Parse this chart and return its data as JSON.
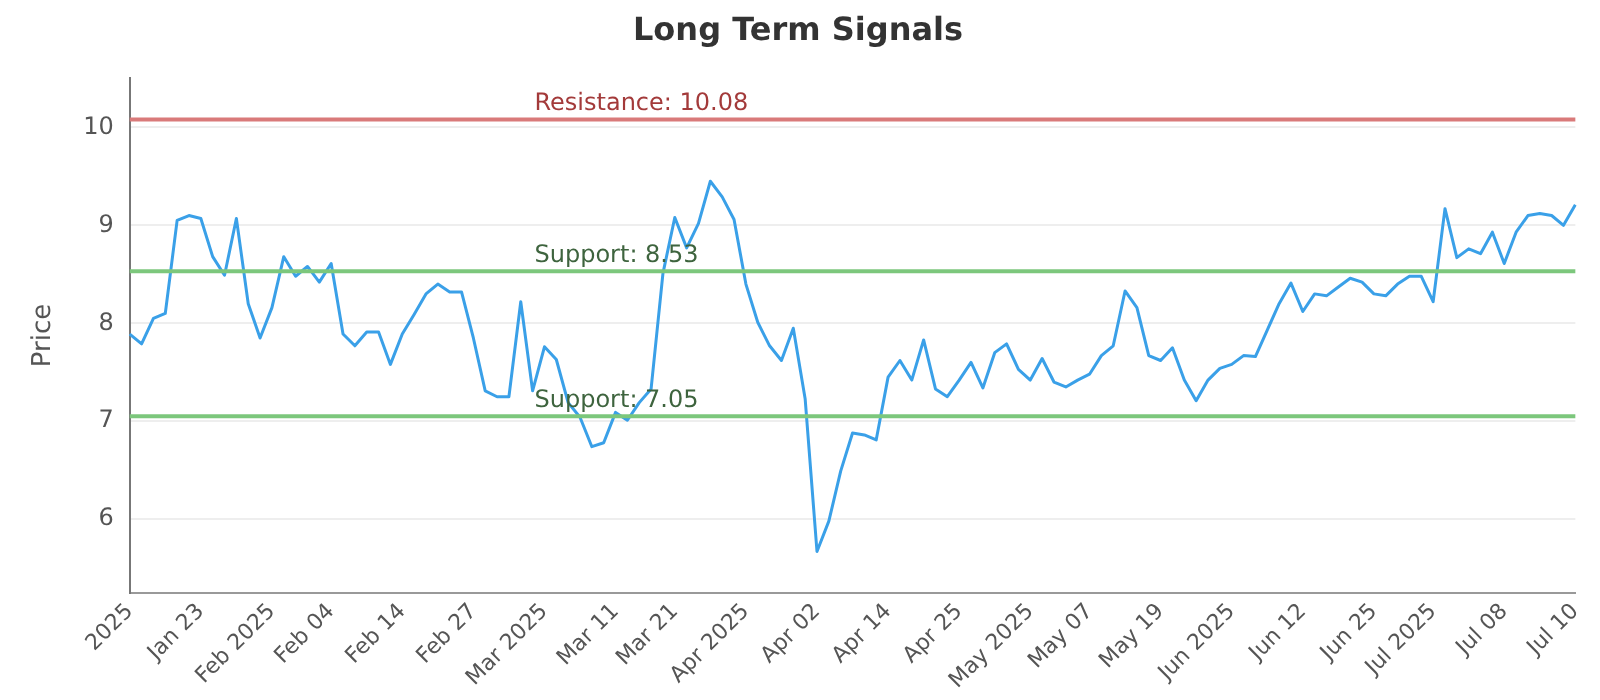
{
  "chart_data": {
    "type": "line",
    "title": "Long Term Signals",
    "ylabel": "Price",
    "categories": [
      "2025",
      null,
      null,
      null,
      null,
      null,
      "Jan 23",
      null,
      null,
      null,
      null,
      null,
      "Feb 2025",
      null,
      null,
      null,
      null,
      "Feb 04",
      null,
      null,
      null,
      null,
      null,
      "Feb 14",
      null,
      null,
      null,
      null,
      null,
      "Feb 27",
      null,
      null,
      null,
      null,
      null,
      "Mar 2025",
      null,
      null,
      null,
      null,
      null,
      "Mar 11",
      null,
      null,
      null,
      null,
      "Mar 21",
      null,
      null,
      null,
      null,
      null,
      "Apr 2025",
      null,
      null,
      null,
      null,
      null,
      "Apr 02",
      null,
      null,
      null,
      null,
      null,
      "Apr 14",
      null,
      null,
      null,
      null,
      null,
      "Apr 25",
      null,
      null,
      null,
      null,
      null,
      "May 2025",
      null,
      null,
      null,
      null,
      "May 07",
      null,
      null,
      null,
      null,
      null,
      "May 19",
      null,
      null,
      null,
      null,
      null,
      "Jun 2025",
      null,
      null,
      null,
      null,
      null,
      "Jun 12",
      null,
      null,
      null,
      null,
      null,
      "Jun 25",
      null,
      null,
      null,
      null,
      "Jul 2025",
      null,
      null,
      null,
      null,
      null,
      "Jul 08",
      null,
      null,
      null,
      null,
      null,
      "Jul 10"
    ],
    "series": [
      {
        "color": "#3aa0e8",
        "values": [
          7.89,
          7.79,
          8.05,
          8.1,
          9.05,
          9.1,
          9.07,
          8.68,
          8.49,
          9.07,
          8.2,
          7.85,
          8.16,
          8.68,
          8.48,
          8.58,
          8.42,
          8.61,
          7.89,
          7.77,
          7.91,
          7.91,
          7.58,
          7.89,
          8.09,
          8.3,
          8.4,
          8.32,
          8.32,
          7.85,
          7.31,
          7.25,
          7.25,
          8.22,
          7.31,
          7.76,
          7.63,
          7.19,
          7.04,
          6.74,
          6.78,
          7.09,
          7.01,
          7.19,
          7.33,
          8.51,
          9.08,
          8.77,
          9.02,
          9.45,
          9.29,
          9.06,
          8.4,
          8.01,
          7.77,
          7.62,
          7.95,
          7.23,
          5.67,
          5.98,
          6.49,
          6.88,
          6.86,
          6.81,
          7.45,
          7.62,
          7.42,
          7.83,
          7.33,
          7.25,
          7.42,
          7.6,
          7.34,
          7.7,
          7.79,
          7.53,
          7.42,
          7.64,
          7.4,
          7.35,
          7.42,
          7.48,
          7.67,
          7.77,
          8.33,
          8.16,
          7.67,
          7.62,
          7.75,
          7.42,
          7.21,
          7.42,
          7.54,
          7.58,
          7.67,
          7.66,
          7.93,
          8.2,
          8.41,
          8.12,
          8.3,
          8.28,
          8.37,
          8.46,
          8.42,
          8.3,
          8.28,
          8.4,
          8.48,
          8.48,
          8.22,
          9.17,
          8.67,
          8.76,
          8.71,
          8.93,
          8.61,
          8.93,
          9.1,
          9.12,
          9.1,
          9.0,
          9.21
        ]
      }
    ],
    "ylim": [
      5.25,
      10.5
    ],
    "yticks": [
      6,
      7,
      8,
      9,
      10
    ],
    "ref_lines": [
      {
        "axis": "y",
        "value": 10.08,
        "label": "Resistance: 10.08",
        "color": "#d97a7a"
      },
      {
        "axis": "y",
        "value": 8.53,
        "label": "Support: 8.53",
        "color": "#7cc77c"
      },
      {
        "axis": "y",
        "value": 7.05,
        "label": "Support: 7.05",
        "color": "#7cc77c"
      }
    ],
    "grid": "y",
    "legend": false,
    "marker": "none",
    "line_style": "solid"
  }
}
